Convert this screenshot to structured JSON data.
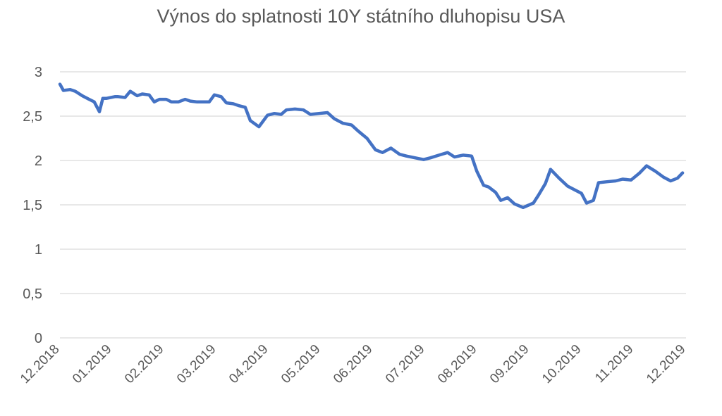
{
  "chart_data": {
    "type": "line",
    "title": "Výnos do splatnosti 10Y státního dluhopisu USA",
    "xlabel": "",
    "ylabel": "",
    "ylim": [
      0,
      3
    ],
    "yticks": [
      "0",
      "0,5",
      "1",
      "1,5",
      "2",
      "2,5",
      "3"
    ],
    "ytick_values": [
      0,
      0.5,
      1,
      1.5,
      2,
      2.5,
      3
    ],
    "xticks": [
      "12.2018",
      "01.2019",
      "02.2019",
      "03.2019",
      "04.2019",
      "05.2019",
      "06.2019",
      "07.2019",
      "08.2019",
      "09.2019",
      "10.2019",
      "11.2019",
      "12.2019"
    ],
    "xlim": [
      "2018-12-01",
      "2019-12-01"
    ],
    "grid": true,
    "legend": "none",
    "line_color": "#4472c4",
    "series": [
      {
        "x": [
          "2018-12-01",
          "2018-12-03",
          "2018-12-07",
          "2018-12-10",
          "2018-12-14",
          "2018-12-18",
          "2018-12-21",
          "2018-12-24",
          "2018-12-26",
          "2018-12-28",
          "2019-01-02",
          "2019-01-04",
          "2019-01-08",
          "2019-01-11",
          "2019-01-15",
          "2019-01-18",
          "2019-01-22",
          "2019-01-25",
          "2019-01-28",
          "2019-02-01",
          "2019-02-04",
          "2019-02-08",
          "2019-02-12",
          "2019-02-15",
          "2019-02-19",
          "2019-02-22",
          "2019-02-26",
          "2019-03-01",
          "2019-03-05",
          "2019-03-08",
          "2019-03-12",
          "2019-03-15",
          "2019-03-19",
          "2019-03-22",
          "2019-03-27",
          "2019-04-01",
          "2019-04-05",
          "2019-04-09",
          "2019-04-12",
          "2019-04-17",
          "2019-04-22",
          "2019-04-26",
          "2019-05-01",
          "2019-05-06",
          "2019-05-10",
          "2019-05-15",
          "2019-05-20",
          "2019-05-24",
          "2019-05-29",
          "2019-06-03",
          "2019-06-07",
          "2019-06-12",
          "2019-06-17",
          "2019-06-21",
          "2019-06-26",
          "2019-07-01",
          "2019-07-05",
          "2019-07-10",
          "2019-07-15",
          "2019-07-19",
          "2019-07-24",
          "2019-07-29",
          "2019-08-01",
          "2019-08-05",
          "2019-08-08",
          "2019-08-12",
          "2019-08-15",
          "2019-08-19",
          "2019-08-23",
          "2019-08-28",
          "2019-09-03",
          "2019-09-06",
          "2019-09-10",
          "2019-09-13",
          "2019-09-18",
          "2019-09-23",
          "2019-09-27",
          "2019-10-01",
          "2019-10-04",
          "2019-10-08",
          "2019-10-11",
          "2019-10-16",
          "2019-10-21",
          "2019-10-25",
          "2019-10-30",
          "2019-11-04",
          "2019-11-08",
          "2019-11-13",
          "2019-11-18",
          "2019-11-22",
          "2019-11-26",
          "2019-11-29"
        ],
        "y": [
          2.86,
          2.79,
          2.8,
          2.78,
          2.73,
          2.69,
          2.66,
          2.55,
          2.7,
          2.7,
          2.72,
          2.72,
          2.71,
          2.78,
          2.73,
          2.75,
          2.74,
          2.66,
          2.69,
          2.69,
          2.66,
          2.66,
          2.69,
          2.67,
          2.66,
          2.66,
          2.66,
          2.74,
          2.72,
          2.65,
          2.64,
          2.62,
          2.6,
          2.45,
          2.38,
          2.51,
          2.53,
          2.52,
          2.57,
          2.58,
          2.57,
          2.52,
          2.53,
          2.54,
          2.47,
          2.42,
          2.4,
          2.33,
          2.25,
          2.12,
          2.09,
          2.14,
          2.07,
          2.05,
          2.03,
          2.01,
          2.03,
          2.06,
          2.09,
          2.04,
          2.06,
          2.05,
          1.88,
          1.72,
          1.7,
          1.64,
          1.55,
          1.58,
          1.51,
          1.47,
          1.52,
          1.61,
          1.74,
          1.9,
          1.8,
          1.71,
          1.67,
          1.63,
          1.52,
          1.55,
          1.75,
          1.76,
          1.77,
          1.79,
          1.78,
          1.86,
          1.94,
          1.88,
          1.81,
          1.77,
          1.8,
          1.86
        ]
      }
    ]
  }
}
